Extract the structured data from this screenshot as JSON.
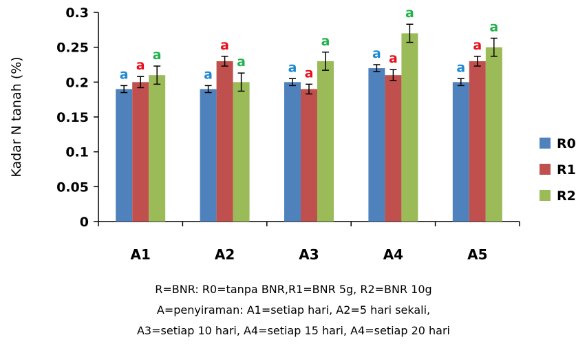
{
  "chart_data": {
    "type": "bar",
    "ylabel": "Kadar N tanah (%)",
    "ylim": [
      0,
      0.3
    ],
    "yticks": [
      "0",
      "0.05",
      "0.1",
      "0.15",
      "0.2",
      "0.25",
      "0.3"
    ],
    "categories": [
      "A1",
      "A2",
      "A3",
      "A4",
      "A5"
    ],
    "series": [
      {
        "name": "R0",
        "color": "#4f81bd",
        "letter_color": "#1f8ad0",
        "values": [
          0.19,
          0.19,
          0.2,
          0.22,
          0.2
        ],
        "errors": [
          0.005,
          0.005,
          0.005,
          0.005,
          0.005
        ],
        "letters": [
          "a",
          "a",
          "a",
          "a",
          "a"
        ]
      },
      {
        "name": "R1",
        "color": "#c0504d",
        "letter_color": "#e8101a",
        "values": [
          0.2,
          0.23,
          0.19,
          0.21,
          0.23
        ],
        "errors": [
          0.008,
          0.007,
          0.007,
          0.008,
          0.007
        ],
        "letters": [
          "a",
          "a",
          "a",
          "a",
          "a"
        ]
      },
      {
        "name": "R2",
        "color": "#9bbb59",
        "letter_color": "#22b24c",
        "values": [
          0.21,
          0.2,
          0.23,
          0.27,
          0.25
        ],
        "errors": [
          0.013,
          0.013,
          0.013,
          0.013,
          0.013
        ],
        "letters": [
          "a",
          "a",
          "a",
          "a",
          "a"
        ]
      }
    ],
    "legend_position": "right",
    "grid": false
  },
  "caption": {
    "line1": "R=BNR: R0=tanpa BNR,R1=BNR 5g, R2=BNR 10g",
    "line2": "A=penyiraman:  A1=setiap hari, A2=5 hari sekali,",
    "line3": "A3=setiap 10 hari, A4=setiap 15 hari, A4=setiap 20 hari"
  }
}
